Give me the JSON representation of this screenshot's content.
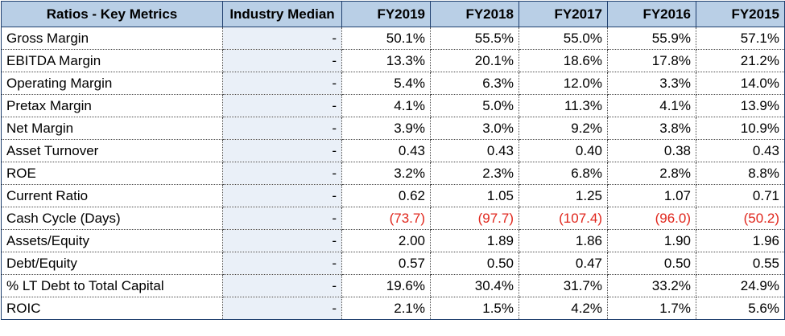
{
  "table": {
    "headers": [
      "Ratios - Key Metrics",
      "Industry Median",
      "FY2019",
      "FY2018",
      "FY2017",
      "FY2016",
      "FY2015"
    ],
    "negative_color": "#e0261c",
    "header_bg": "#b9cfe6",
    "rows": [
      {
        "label": "Gross Margin",
        "median": "-",
        "values": [
          "50.1%",
          "55.5%",
          "55.0%",
          "55.9%",
          "57.1%"
        ]
      },
      {
        "label": "EBITDA Margin",
        "median": "-",
        "values": [
          "13.3%",
          "20.1%",
          "18.6%",
          "17.8%",
          "21.2%"
        ]
      },
      {
        "label": "Operating Margin",
        "median": "-",
        "values": [
          "5.4%",
          "6.3%",
          "12.0%",
          "3.3%",
          "14.0%"
        ]
      },
      {
        "label": "Pretax Margin",
        "median": "-",
        "values": [
          "4.1%",
          "5.0%",
          "11.3%",
          "4.1%",
          "13.9%"
        ]
      },
      {
        "label": "Net Margin",
        "median": "-",
        "values": [
          "3.9%",
          "3.0%",
          "9.2%",
          "3.8%",
          "10.9%"
        ]
      },
      {
        "label": "Asset Turnover",
        "median": "-",
        "values": [
          "0.43",
          "0.43",
          "0.40",
          "0.38",
          "0.43"
        ]
      },
      {
        "label": "ROE",
        "median": "-",
        "values": [
          "3.2%",
          "2.3%",
          "6.8%",
          "2.8%",
          "8.8%"
        ]
      },
      {
        "label": "Current Ratio",
        "median": "-",
        "values": [
          "0.62",
          "1.05",
          "1.25",
          "1.07",
          "0.71"
        ]
      },
      {
        "label": "Cash Cycle (Days)",
        "median": "-",
        "values": [
          "(73.7)",
          "(97.7)",
          "(107.4)",
          "(96.0)",
          "(50.2)"
        ]
      },
      {
        "label": "Assets/Equity",
        "median": "-",
        "values": [
          "2.00",
          "1.89",
          "1.86",
          "1.90",
          "1.96"
        ]
      },
      {
        "label": "Debt/Equity",
        "median": "-",
        "values": [
          "0.57",
          "0.50",
          "0.47",
          "0.50",
          "0.55"
        ]
      },
      {
        "label": "% LT Debt to Total Capital",
        "median": "-",
        "values": [
          "19.6%",
          "30.4%",
          "31.7%",
          "33.2%",
          "24.9%"
        ]
      },
      {
        "label": "ROIC",
        "median": "-",
        "values": [
          "2.1%",
          "1.5%",
          "4.2%",
          "1.7%",
          "5.6%"
        ]
      }
    ]
  }
}
